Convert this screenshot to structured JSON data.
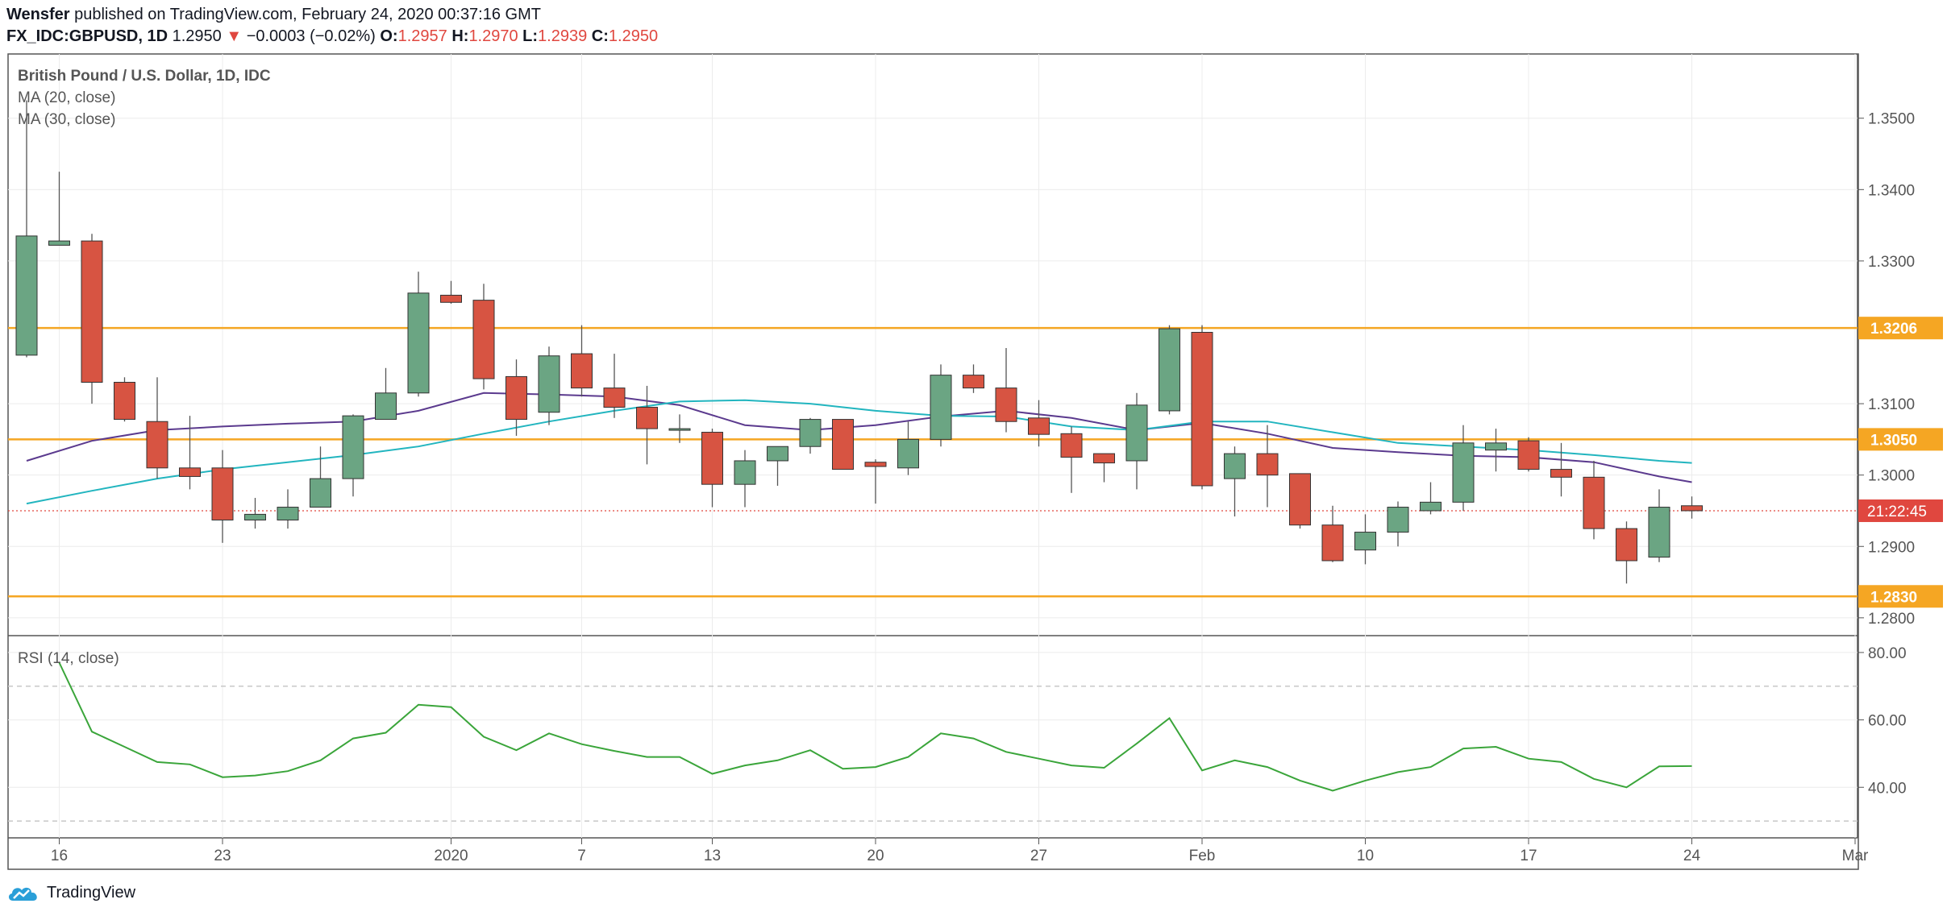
{
  "header": {
    "author": "Wensfer",
    "published_text": "published on TradingView.com, February 24, 2020 00:37:16 GMT",
    "symbol": "FX_IDC:GBPUSD, 1D",
    "last": "1.2950",
    "change_arrow": "▼",
    "change": "−0.0003 (−0.02%)",
    "o_label": "O:",
    "o_value": "1.2957",
    "h_label": "H:",
    "h_value": "1.2970",
    "l_label": "L:",
    "l_value": "1.2939",
    "c_label": "C:",
    "c_value": "1.2950"
  },
  "legend": {
    "title": "British Pound / U.S. Dollar, 1D, IDC",
    "ma20": "MA (20, close)",
    "ma30": "MA (30, close)",
    "rsi": "RSI (14, close)"
  },
  "brand": {
    "name": "TradingView"
  },
  "colors": {
    "up": "#6ba583",
    "down": "#d75442",
    "ma20": "#5b3a8e",
    "ma30": "#22b5bf",
    "rsi": "#3aa53a",
    "level": "#f5a623",
    "current": "#e0473f"
  },
  "chart_data": [
    {
      "type": "candlestick",
      "title": "British Pound / U.S. Dollar, 1D, IDC",
      "ylim": [
        1.2775,
        1.359
      ],
      "y_ticks": [
        1.35,
        1.34,
        1.33,
        1.31,
        1.3,
        1.29,
        1.28
      ],
      "y_tick_labels": [
        "1.3500",
        "1.3400",
        "1.3300",
        "1.3100",
        "1.3000",
        "1.2900",
        "1.2800"
      ],
      "x_ticks": [
        {
          "index": 1,
          "label": "16"
        },
        {
          "index": 6,
          "label": "23"
        },
        {
          "index": 13,
          "label": "2020"
        },
        {
          "index": 17,
          "label": "7"
        },
        {
          "index": 21,
          "label": "13"
        },
        {
          "index": 26,
          "label": "20"
        },
        {
          "index": 31,
          "label": "27"
        },
        {
          "index": 36,
          "label": "Feb"
        },
        {
          "index": 41,
          "label": "10"
        },
        {
          "index": 46,
          "label": "17"
        },
        {
          "index": 51,
          "label": "24"
        },
        {
          "index": 56,
          "label": "Mar"
        }
      ],
      "candles": [
        {
          "o": 1.3168,
          "h": 1.3525,
          "l": 1.3165,
          "c": 1.3335
        },
        {
          "o": 1.3322,
          "h": 1.3425,
          "l": 1.3322,
          "c": 1.3328
        },
        {
          "o": 1.3328,
          "h": 1.3338,
          "l": 1.31,
          "c": 1.313
        },
        {
          "o": 1.313,
          "h": 1.3137,
          "l": 1.3075,
          "c": 1.3078
        },
        {
          "o": 1.3075,
          "h": 1.3137,
          "l": 1.2995,
          "c": 1.301
        },
        {
          "o": 1.301,
          "h": 1.3083,
          "l": 1.298,
          "c": 1.2998
        },
        {
          "o": 1.301,
          "h": 1.3035,
          "l": 1.2905,
          "c": 1.2937
        },
        {
          "o": 1.2937,
          "h": 1.2968,
          "l": 1.2925,
          "c": 1.2945
        },
        {
          "o": 1.2937,
          "h": 1.298,
          "l": 1.2925,
          "c": 1.2955
        },
        {
          "o": 1.2955,
          "h": 1.304,
          "l": 1.2955,
          "c": 1.2995
        },
        {
          "o": 1.2995,
          "h": 1.3085,
          "l": 1.297,
          "c": 1.3083
        },
        {
          "o": 1.3078,
          "h": 1.315,
          "l": 1.3078,
          "c": 1.3115
        },
        {
          "o": 1.3115,
          "h": 1.3285,
          "l": 1.311,
          "c": 1.3255
        },
        {
          "o": 1.3252,
          "h": 1.3272,
          "l": 1.324,
          "c": 1.3242
        },
        {
          "o": 1.3245,
          "h": 1.3268,
          "l": 1.312,
          "c": 1.3135
        },
        {
          "o": 1.3138,
          "h": 1.3162,
          "l": 1.3055,
          "c": 1.3078
        },
        {
          "o": 1.3088,
          "h": 1.318,
          "l": 1.307,
          "c": 1.3167
        },
        {
          "o": 1.317,
          "h": 1.321,
          "l": 1.311,
          "c": 1.3122
        },
        {
          "o": 1.3122,
          "h": 1.317,
          "l": 1.308,
          "c": 1.3095
        },
        {
          "o": 1.3095,
          "h": 1.3125,
          "l": 1.3015,
          "c": 1.3065
        },
        {
          "o": 1.3065,
          "h": 1.3085,
          "l": 1.3045,
          "c": 1.3065
        },
        {
          "o": 1.306,
          "h": 1.3065,
          "l": 1.2955,
          "c": 1.2987
        },
        {
          "o": 1.2987,
          "h": 1.3035,
          "l": 1.2955,
          "c": 1.302
        },
        {
          "o": 1.302,
          "h": 1.304,
          "l": 1.2985,
          "c": 1.304
        },
        {
          "o": 1.304,
          "h": 1.308,
          "l": 1.303,
          "c": 1.3078
        },
        {
          "o": 1.3078,
          "h": 1.3078,
          "l": 1.3008,
          "c": 1.3008
        },
        {
          "o": 1.3018,
          "h": 1.3022,
          "l": 1.296,
          "c": 1.3012
        },
        {
          "o": 1.301,
          "h": 1.3075,
          "l": 1.3,
          "c": 1.305
        },
        {
          "o": 1.305,
          "h": 1.3155,
          "l": 1.304,
          "c": 1.314
        },
        {
          "o": 1.314,
          "h": 1.3155,
          "l": 1.3115,
          "c": 1.3122
        },
        {
          "o": 1.3122,
          "h": 1.3178,
          "l": 1.306,
          "c": 1.3075
        },
        {
          "o": 1.308,
          "h": 1.3105,
          "l": 1.304,
          "c": 1.3057
        },
        {
          "o": 1.3058,
          "h": 1.3068,
          "l": 1.2975,
          "c": 1.3025
        },
        {
          "o": 1.303,
          "h": 1.303,
          "l": 1.299,
          "c": 1.3017
        },
        {
          "o": 1.302,
          "h": 1.3115,
          "l": 1.298,
          "c": 1.3098
        },
        {
          "o": 1.309,
          "h": 1.321,
          "l": 1.3085,
          "c": 1.3205
        },
        {
          "o": 1.32,
          "h": 1.321,
          "l": 1.298,
          "c": 1.2985
        },
        {
          "o": 1.2995,
          "h": 1.304,
          "l": 1.2942,
          "c": 1.303
        },
        {
          "o": 1.303,
          "h": 1.307,
          "l": 1.2955,
          "c": 1.3
        },
        {
          "o": 1.3002,
          "h": 1.3002,
          "l": 1.2925,
          "c": 1.293
        },
        {
          "o": 1.293,
          "h": 1.2957,
          "l": 1.2878,
          "c": 1.288
        },
        {
          "o": 1.2895,
          "h": 1.2945,
          "l": 1.2875,
          "c": 1.292
        },
        {
          "o": 1.292,
          "h": 1.2963,
          "l": 1.29,
          "c": 1.2955
        },
        {
          "o": 1.295,
          "h": 1.299,
          "l": 1.2945,
          "c": 1.2962
        },
        {
          "o": 1.2962,
          "h": 1.307,
          "l": 1.295,
          "c": 1.3045
        },
        {
          "o": 1.3035,
          "h": 1.3065,
          "l": 1.3005,
          "c": 1.3045
        },
        {
          "o": 1.3048,
          "h": 1.3053,
          "l": 1.3005,
          "c": 1.3008
        },
        {
          "o": 1.3008,
          "h": 1.3045,
          "l": 1.297,
          "c": 1.2997
        },
        {
          "o": 1.2997,
          "h": 1.302,
          "l": 1.291,
          "c": 1.2925
        },
        {
          "o": 1.2925,
          "h": 1.2935,
          "l": 1.2848,
          "c": 1.288
        },
        {
          "o": 1.2885,
          "h": 1.298,
          "l": 1.2878,
          "c": 1.2955
        },
        {
          "o": 1.2957,
          "h": 1.297,
          "l": 1.2939,
          "c": 1.295
        }
      ],
      "series": [
        {
          "name": "MA (20, close)",
          "x": [
            0,
            2,
            4,
            6,
            8,
            10,
            12,
            14,
            16,
            18,
            20,
            22,
            24,
            26,
            28,
            30,
            32,
            34,
            36,
            38,
            40,
            42,
            44,
            46,
            48,
            50,
            51
          ],
          "values": [
            1.302,
            1.3048,
            1.3063,
            1.3068,
            1.3072,
            1.3075,
            1.309,
            1.3115,
            1.3113,
            1.311,
            1.3098,
            1.307,
            1.3063,
            1.307,
            1.3082,
            1.309,
            1.308,
            1.3063,
            1.3073,
            1.3058,
            1.3038,
            1.3032,
            1.3027,
            1.3025,
            1.3018,
            1.2998,
            1.299
          ]
        },
        {
          "name": "MA (30, close)",
          "x": [
            0,
            2,
            4,
            6,
            8,
            10,
            12,
            14,
            16,
            18,
            20,
            22,
            24,
            26,
            28,
            30,
            32,
            34,
            36,
            38,
            40,
            42,
            44,
            46,
            48,
            50,
            51
          ],
          "values": [
            1.296,
            1.2978,
            1.2995,
            1.3008,
            1.3018,
            1.3028,
            1.304,
            1.3058,
            1.3075,
            1.309,
            1.3103,
            1.3105,
            1.31,
            1.309,
            1.3083,
            1.3082,
            1.3068,
            1.3063,
            1.3075,
            1.3075,
            1.306,
            1.3045,
            1.304,
            1.3035,
            1.3028,
            1.302,
            1.3017
          ]
        }
      ],
      "levels": [
        {
          "value": 1.3206,
          "label": "1.3206"
        },
        {
          "value": 1.305,
          "label": "1.3050"
        },
        {
          "value": 1.283,
          "label": "1.2830"
        }
      ],
      "current_price": {
        "value": 1.295,
        "label": "21:22:45"
      }
    },
    {
      "type": "line",
      "title": "RSI (14, close)",
      "ylim": [
        25,
        85
      ],
      "y_ticks": [
        80,
        60,
        40
      ],
      "y_tick_labels": [
        "80.00",
        "60.00",
        "40.00"
      ],
      "bands": [
        70,
        30
      ],
      "x": [
        1,
        2,
        3,
        4,
        5,
        6,
        7,
        8,
        9,
        10,
        11,
        12,
        13,
        14,
        15,
        16,
        17,
        18,
        19,
        20,
        21,
        22,
        23,
        24,
        25,
        26,
        27,
        28,
        29,
        30,
        31,
        32,
        33,
        34,
        35,
        36,
        37,
        38,
        39,
        40,
        41,
        42,
        43,
        44,
        45,
        46,
        47,
        48,
        49,
        50,
        51
      ],
      "values": [
        77,
        56.5,
        52,
        47.5,
        46.8,
        43,
        43.5,
        44.8,
        48,
        54.5,
        56.2,
        64.5,
        63.8,
        55,
        51,
        56,
        52.8,
        50.8,
        49,
        49,
        44,
        46.5,
        48,
        51,
        45.5,
        46,
        49,
        56,
        54.5,
        50.5,
        48.5,
        46.5,
        45.8,
        53,
        60.5,
        45,
        48,
        46,
        42,
        39,
        42,
        44.5,
        46,
        51.5,
        52,
        48.5,
        47.5,
        42.5,
        40,
        46.2,
        46.3
      ]
    }
  ]
}
